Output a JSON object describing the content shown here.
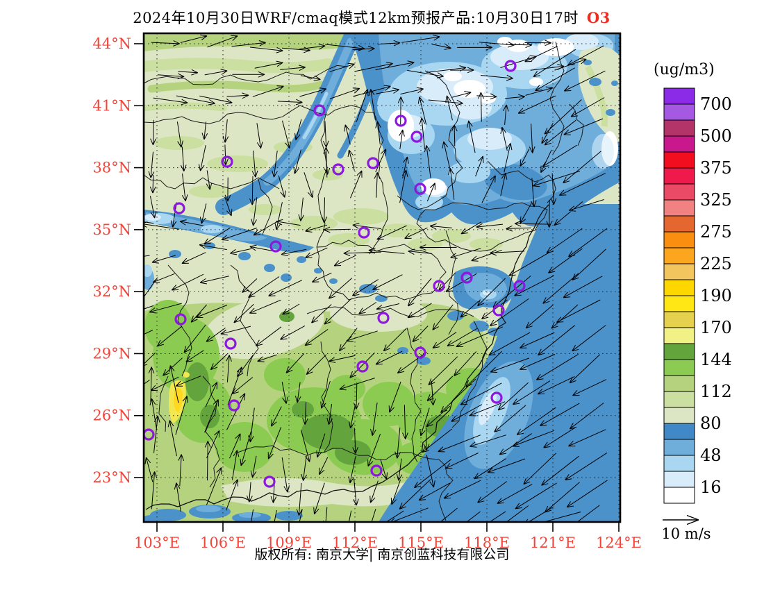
{
  "title": {
    "text": "2024年10月30日WRF/cmaq模式12km预报产品:10月30日17时",
    "species": "O3",
    "species_color": "#EE2D22"
  },
  "axes": {
    "lat_labels": [
      "44°N",
      "41°N",
      "38°N",
      "35°N",
      "32°N",
      "29°N",
      "26°N",
      "23°N"
    ],
    "lon_labels": [
      "103°E",
      "106°E",
      "109°E",
      "112°E",
      "115°E",
      "118°E",
      "121°E",
      "124°E"
    ],
    "label_color": "#F2453A"
  },
  "colorbar": {
    "unit_label": "(ug/m3)",
    "tick_labels": [
      "700",
      "500",
      "375",
      "325",
      "275",
      "225",
      "190",
      "170",
      "144",
      "112",
      "80",
      "48",
      "16"
    ],
    "colors_high_to_low": [
      "#8B2BE8",
      "#A558E2",
      "#B23468",
      "#C9188C",
      "#F20D1F",
      "#EF1A4B",
      "#EA4A66",
      "#F28181",
      "#E3672F",
      "#FA8E10",
      "#FCA51F",
      "#F2C55F",
      "#FFD700",
      "#FFE715",
      "#E5D14D",
      "#F2F185",
      "#63A53C",
      "#8CCB52",
      "#B5D37E",
      "#CBDFA0",
      "#DDE6C4",
      "#4189C6",
      "#6FAEDB",
      "#A9D7F1",
      "#D9ECFA",
      "#FFFFFF"
    ]
  },
  "wind_legend": {
    "label": "10 m/s"
  },
  "footer": {
    "text": "版权所有: 南京大学| 南京创蓝科技有限公司"
  },
  "map_palette": {
    "base_sage": "#DDE6C4",
    "olive": "#CBDFA0",
    "yellow_green": "#B5D37E",
    "medium_green": "#8CCB52",
    "strong_green": "#63A53C",
    "yellow": "#F2E74F",
    "gold": "#FFD81F",
    "steel_blue": "#4B92CB",
    "mid_blue": "#6FAEDB",
    "light_blue": "#A9D7F1",
    "pale_blue": "#D9ECFA",
    "white": "#FFFFFF",
    "marker_purple": "#8E17E0",
    "arrow_black": "#000000"
  },
  "markers": {
    "points": [
      [
        735,
        95
      ],
      [
        460,
        159
      ],
      [
        577,
        174
      ],
      [
        600,
        197
      ],
      [
        327,
        233
      ],
      [
        487,
        244
      ],
      [
        537,
        235
      ],
      [
        605,
        272
      ],
      [
        258,
        300
      ],
      [
        397,
        355
      ],
      [
        524,
        335
      ],
      [
        632,
        412
      ],
      [
        672,
        400
      ],
      [
        748,
        412
      ],
      [
        718,
        447
      ],
      [
        260,
        460
      ],
      [
        552,
        458
      ],
      [
        332,
        495
      ],
      [
        522,
        528
      ],
      [
        605,
        508
      ],
      [
        337,
        584
      ],
      [
        214,
        626
      ],
      [
        715,
        573
      ],
      [
        388,
        694
      ],
      [
        542,
        678
      ]
    ]
  }
}
